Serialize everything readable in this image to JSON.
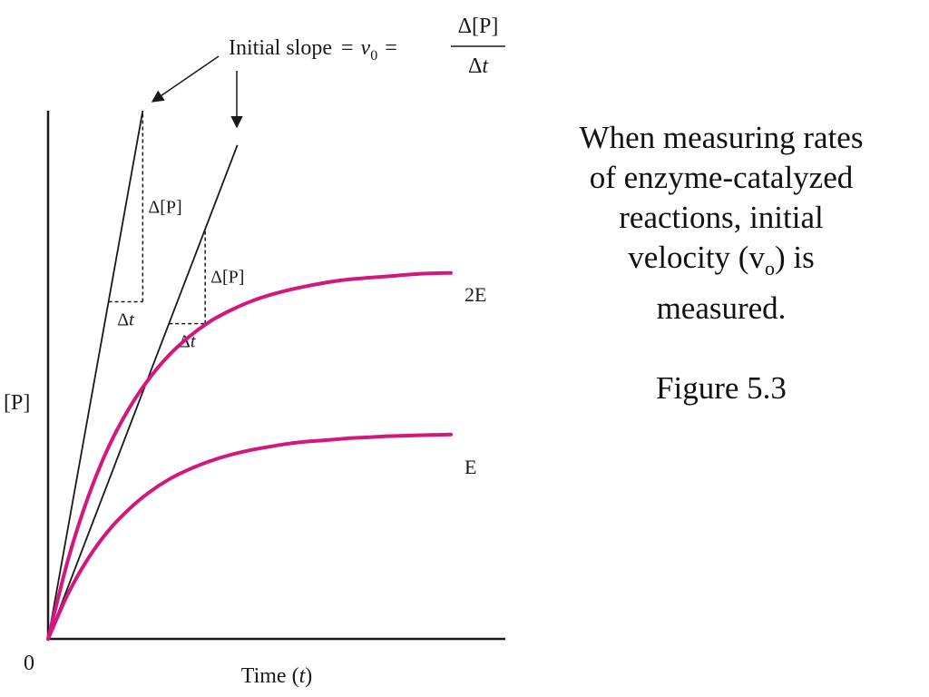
{
  "chart_data": {
    "type": "line",
    "xlabel_prefix": "Time (",
    "xlabel_var": "t",
    "xlabel_suffix": ")",
    "ylabel": "[P]",
    "origin_label": "0",
    "xlim": [
      0,
      10
    ],
    "ylim": [
      0,
      10
    ],
    "series": [
      {
        "name": "2E",
        "color": "#d4177d",
        "x": [
          0,
          0.5,
          1,
          1.5,
          2,
          2.5,
          3,
          3.5,
          4,
          4.5,
          5,
          5.5,
          6,
          6.5,
          7,
          7.5,
          8,
          8.5,
          9,
          9.5,
          10
        ],
        "y": [
          0,
          1.51,
          2.7,
          3.63,
          4.35,
          4.92,
          5.37,
          5.72,
          6.0,
          6.21,
          6.38,
          6.51,
          6.61,
          6.69,
          6.76,
          6.81,
          6.84,
          6.87,
          6.9,
          6.92,
          6.93
        ]
      },
      {
        "name": "E",
        "color": "#d4177d",
        "x": [
          0,
          0.5,
          1,
          1.5,
          2,
          2.5,
          3,
          3.5,
          4,
          4.5,
          5,
          5.5,
          6,
          6.5,
          7,
          7.5,
          8,
          8.5,
          9,
          9.5,
          10
        ],
        "y": [
          0,
          0.86,
          1.53,
          2.05,
          2.45,
          2.77,
          3.02,
          3.21,
          3.36,
          3.48,
          3.57,
          3.64,
          3.7,
          3.74,
          3.77,
          3.8,
          3.82,
          3.84,
          3.85,
          3.86,
          3.87
        ]
      }
    ],
    "tangents": [
      {
        "name": "tangent-2E",
        "x0": 0,
        "y0": 0,
        "x1": 2.35,
        "y1": 10
      },
      {
        "name": "tangent-E",
        "x0": 0,
        "y0": 0,
        "x1": 4.7,
        "y1": 9.35
      }
    ],
    "slope_triangles": [
      {
        "tangent": 0,
        "x_start": 1.5,
        "x_end": 2.35,
        "dy_label": "Δ[P]",
        "dx_label": "Δt"
      },
      {
        "tangent": 1,
        "x_start": 3.0,
        "x_end": 3.9,
        "dy_label": "Δ[P]",
        "dx_label": "Δt"
      }
    ],
    "annotation": {
      "text": "Initial slope",
      "equals": "=",
      "v_symbol": "v",
      "v_sub": "0",
      "frac_numerator": "Δ[P]",
      "frac_denominator": "Δt"
    }
  },
  "caption": {
    "lines": [
      "When measuring rates",
      "of enzyme-catalyzed",
      "reactions, initial"
    ],
    "line4_prefix": "velocity (v",
    "line4_sub": "o",
    "line4_suffix": ") is",
    "line5": "measured.",
    "figure_ref": "Figure 5.3"
  }
}
